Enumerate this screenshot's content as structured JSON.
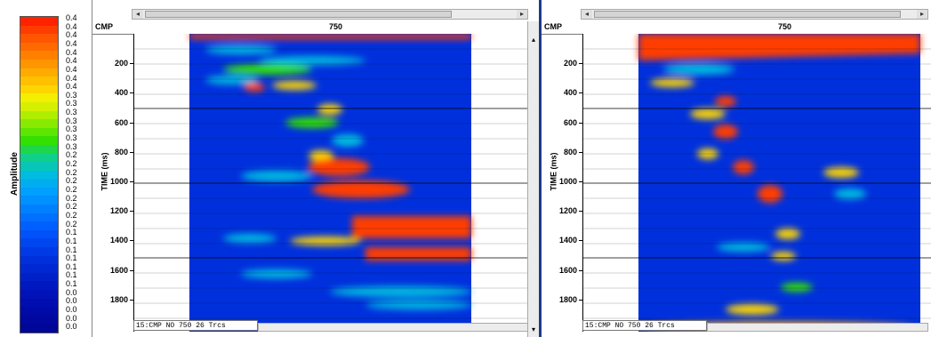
{
  "colorbar": {
    "title": "Amplitude",
    "labels": [
      "0.4",
      "0.4",
      "0.4",
      "0.4",
      "0.4",
      "0.4",
      "0.4",
      "0.4",
      "0.4",
      "0.3",
      "0.3",
      "0.3",
      "0.3",
      "0.3",
      "0.3",
      "0.3",
      "0.2",
      "0.2",
      "0.2",
      "0.2",
      "0.2",
      "0.2",
      "0.2",
      "0.2",
      "0.2",
      "0.1",
      "0.1",
      "0.1",
      "0.1",
      "0.1",
      "0.1",
      "0.1",
      "0.0",
      "0.0",
      "0.0",
      "0.0",
      "0.0"
    ],
    "colors": [
      "#ff2200",
      "#ff3c00",
      "#ff5500",
      "#ff6a00",
      "#ff8000",
      "#ff9500",
      "#ffab00",
      "#ffc000",
      "#ffd500",
      "#f4ee00",
      "#d4f000",
      "#b0ee00",
      "#88ea00",
      "#5fe600",
      "#33e000",
      "#1ed64a",
      "#10cf8a",
      "#08c6b6",
      "#00bce0",
      "#00aef0",
      "#00a0ff",
      "#0090ff",
      "#0080ff",
      "#0070ff",
      "#0060ff",
      "#0052fa",
      "#0046f0",
      "#003ae6",
      "#0030dc",
      "#0028d2",
      "#0020c8",
      "#0018c0",
      "#0012b8",
      "#000eb0",
      "#000aa8",
      "#0008a0",
      "#000698"
    ]
  },
  "panels": [
    {
      "id": "left",
      "cmp_label": "CMP",
      "cmp_value": "750",
      "axis_title": "TIME (ms)",
      "ticks": [
        "200",
        "400",
        "600",
        "800",
        "1000",
        "1200",
        "1400",
        "1600",
        "1800"
      ],
      "status": "15:CMP NO 750 26 Trcs"
    },
    {
      "id": "right",
      "cmp_label": "CMP",
      "cmp_value": "750",
      "axis_title": "TIME (ms)",
      "ticks": [
        "200",
        "400",
        "600",
        "800",
        "1000",
        "1200",
        "1400",
        "1600",
        "1800"
      ],
      "status": "15:CMP NO 750 26 Trcs"
    }
  ],
  "icons": {
    "scroll_left": "arrow-left-icon",
    "scroll_right": "arrow-right-icon",
    "scroll_up": "arrow-up-icon",
    "scroll_down": "arrow-down-icon"
  },
  "palette": {
    "background": "#0030dc",
    "hot": "#ff3c00",
    "warm": "#ffd500",
    "mid": "#33e000",
    "cool": "#00bce0"
  }
}
